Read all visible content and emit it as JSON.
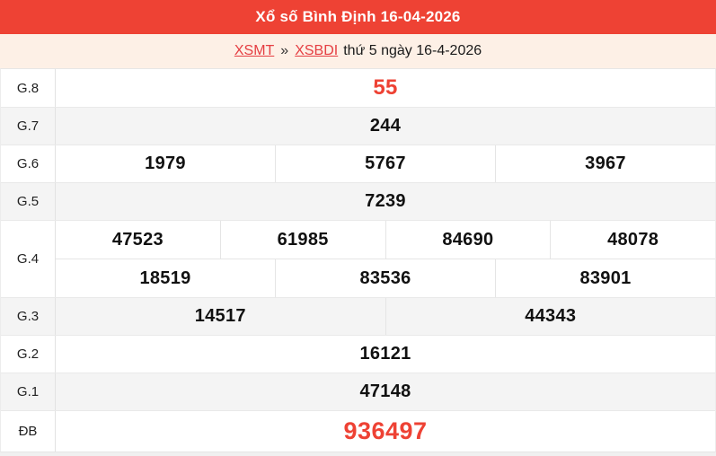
{
  "header": {
    "title": "Xổ số Bình Định 16-04-2026"
  },
  "breadcrumb": {
    "link1": "XSMT",
    "separator": "»",
    "link2": "XSBDI",
    "suffix": "thứ 5 ngày 16-4-2026"
  },
  "colors": {
    "accent_red": "#ee4234",
    "cream_background": "#fdf0e6",
    "link_red": "#e53e42",
    "shade_row": "#f4f4f4",
    "border": "#e5e5e5"
  },
  "results": {
    "rows": [
      {
        "label": "G.8",
        "values": [
          "55"
        ],
        "shade": false,
        "highlight": true
      },
      {
        "label": "G.7",
        "values": [
          "244"
        ],
        "shade": true
      },
      {
        "label": "G.6",
        "values": [
          "1979",
          "5767",
          "3967"
        ],
        "shade": false
      },
      {
        "label": "G.5",
        "values": [
          "7239"
        ],
        "shade": true
      },
      {
        "label": "G.4",
        "rows": [
          [
            "47523",
            "61985",
            "84690",
            "48078"
          ],
          [
            "18519",
            "83536",
            "83901"
          ]
        ],
        "shade": false
      },
      {
        "label": "G.3",
        "values": [
          "14517",
          "44343"
        ],
        "shade": true
      },
      {
        "label": "G.2",
        "values": [
          "16121"
        ],
        "shade": false
      },
      {
        "label": "G.1",
        "values": [
          "47148"
        ],
        "shade": true
      },
      {
        "label": "ĐB",
        "values": [
          "936497"
        ],
        "shade": false,
        "jackpot": true
      }
    ]
  }
}
